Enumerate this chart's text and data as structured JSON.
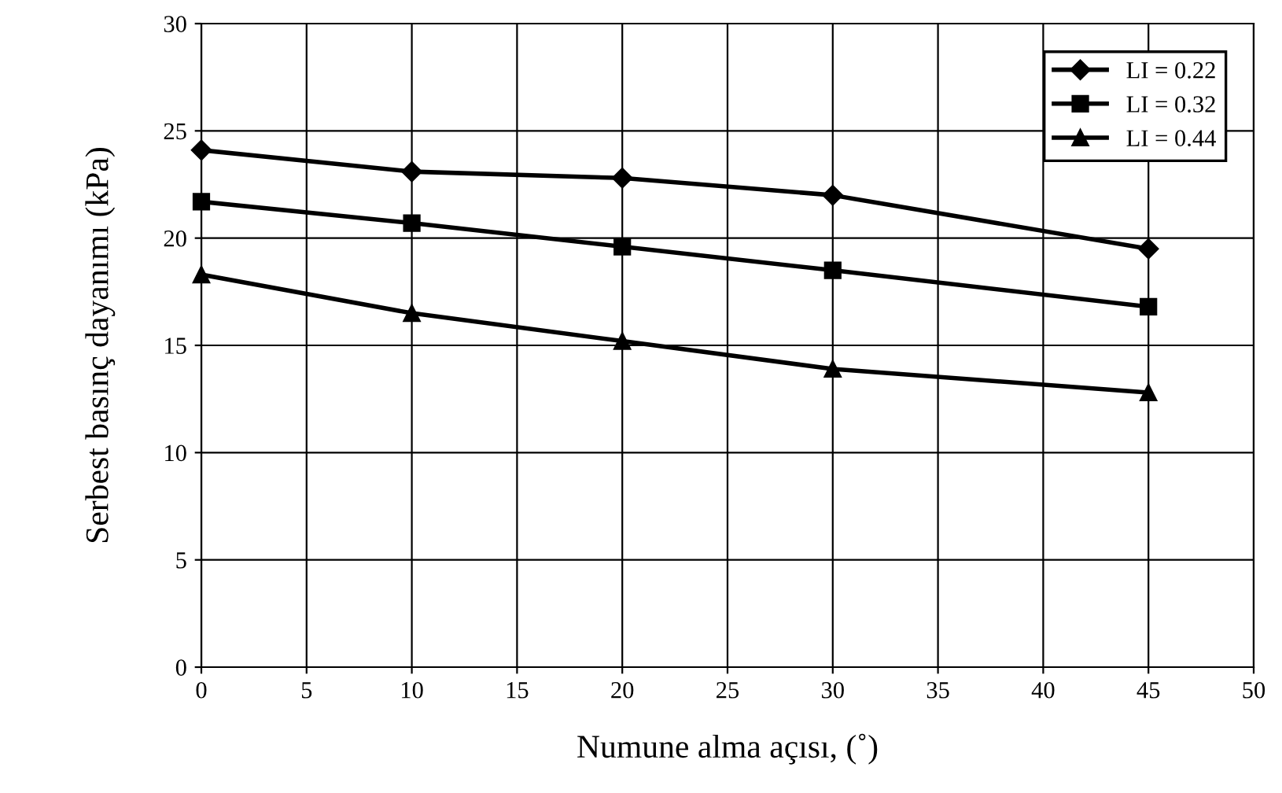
{
  "chart_data": {
    "type": "line",
    "xlabel": "Numune alma açısı, (˚)",
    "ylabel": "Serbest basınç dayanımı (kPa)",
    "x": [
      0,
      10,
      20,
      30,
      45
    ],
    "series": [
      {
        "name": "LI = 0.22",
        "color": "#000000",
        "marker": "diamond",
        "values": [
          24.1,
          23.1,
          22.8,
          22.0,
          19.5
        ]
      },
      {
        "name": "LI = 0.32",
        "color": "#000000",
        "marker": "square",
        "values": [
          21.7,
          20.7,
          19.6,
          18.5,
          16.8
        ]
      },
      {
        "name": "LI = 0.44",
        "color": "#000000",
        "marker": "triangle",
        "values": [
          18.3,
          16.5,
          15.2,
          13.9,
          12.8
        ]
      }
    ],
    "xlim": [
      0,
      50
    ],
    "xticks": [
      0,
      5,
      10,
      15,
      20,
      25,
      30,
      35,
      40,
      45,
      50
    ],
    "ylim": [
      0,
      30
    ],
    "yticks": [
      0,
      5,
      10,
      15,
      20,
      25,
      30
    ],
    "grid": true,
    "legend": "top right",
    "line_style": "solid"
  }
}
